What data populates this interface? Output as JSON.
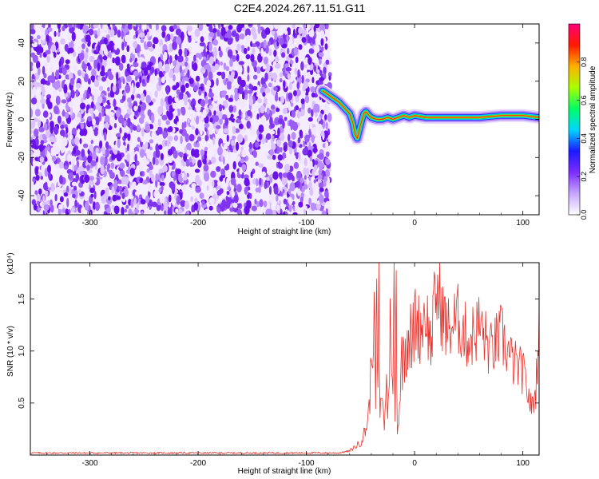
{
  "title": "C2E4.2024.267.11.51.G11",
  "colors": {
    "snr_line": "#e8302a",
    "speckle": [
      "#f2e6ff",
      "#dcc1ff",
      "#b98cff",
      "#9a5cf5",
      "#7f32f0",
      "#6a10e8"
    ],
    "colorbar": [
      "#ffffff",
      "#c7a6ff",
      "#7d2cff",
      "#1a1aff",
      "#00d5ff",
      "#00ff66",
      "#a8ff00",
      "#ffb000",
      "#ff1a00",
      "#ff0077"
    ]
  },
  "chart_data": [
    {
      "type": "heatmap",
      "title": "C2E4.2024.267.11.51.G11",
      "xlabel": "Height of straight line (km)",
      "ylabel": "Frequency (Hz)",
      "xlim": [
        -355,
        115
      ],
      "ylim": [
        -50,
        50
      ],
      "x_ticks": [
        -300,
        -200,
        -100,
        0,
        100
      ],
      "y_ticks": [
        -40,
        -20,
        0,
        20,
        40
      ],
      "noise_region_x": [
        -355,
        -78
      ],
      "signal_track": {
        "x": [
          -85,
          -80,
          -75,
          -70,
          -65,
          -60,
          -57,
          -55,
          -53,
          -50,
          -47,
          -45,
          -42,
          -40,
          -35,
          -30,
          -25,
          -20,
          -15,
          -10,
          -5,
          0,
          10,
          20,
          40,
          60,
          80,
          100,
          115
        ],
        "y": [
          15,
          13,
          11,
          9,
          6,
          3,
          -2,
          -8,
          -10,
          -3,
          3,
          4,
          2,
          1,
          0,
          0,
          1,
          0,
          1,
          2,
          1,
          2,
          1,
          1,
          1,
          1,
          2,
          2,
          1
        ]
      },
      "colorbar": {
        "label": "Normalized spectral amplitude",
        "range": [
          0,
          1
        ],
        "ticks": [
          "0.0",
          "0.2",
          "0.4",
          "0.6",
          "0.8"
        ]
      }
    },
    {
      "type": "line",
      "xlabel": "Height of straight line (km)",
      "ylabel": "SNR (10 * v/v)",
      "y_multiplier": "(x10⁴)",
      "xlim": [
        -355,
        115
      ],
      "ylim": [
        0,
        1.85
      ],
      "x_ticks": [
        -300,
        -200,
        -100,
        0,
        100
      ],
      "y_ticks": [
        "0.5",
        "1.0",
        "1.5"
      ],
      "y_tick_values": [
        0.5,
        1.0,
        1.5
      ],
      "series": [
        {
          "x": [
            -355,
            -200,
            -100,
            -70,
            -60,
            -55,
            -50,
            -45,
            -42,
            -40,
            -38,
            -36,
            -35,
            -34,
            -33,
            -32,
            -30,
            -28,
            -26,
            -25,
            -22,
            -20,
            -19,
            -18,
            -17,
            -16,
            -14,
            -12,
            -10,
            -8,
            -5,
            -2,
            0,
            5,
            10,
            15,
            20,
            30,
            40,
            50,
            60,
            70,
            80,
            90,
            100,
            108,
            112,
            115
          ],
          "y": [
            0.02,
            0.02,
            0.02,
            0.02,
            0.04,
            0.08,
            0.12,
            0.25,
            0.45,
            0.85,
            1.45,
            0.6,
            1.5,
            0.5,
            1.6,
            0.3,
            0.7,
            0.2,
            0.9,
            0.3,
            1.4,
            0.5,
            1.7,
            0.3,
            1.85,
            0.2,
            0.5,
            0.9,
            1.0,
            1.1,
            1.2,
            1.0,
            1.35,
            1.2,
            1.4,
            1.05,
            1.6,
            1.2,
            1.3,
            1.1,
            1.25,
            1.0,
            1.15,
            0.9,
            0.8,
            0.45,
            0.6,
            1.45
          ]
        }
      ]
    }
  ]
}
